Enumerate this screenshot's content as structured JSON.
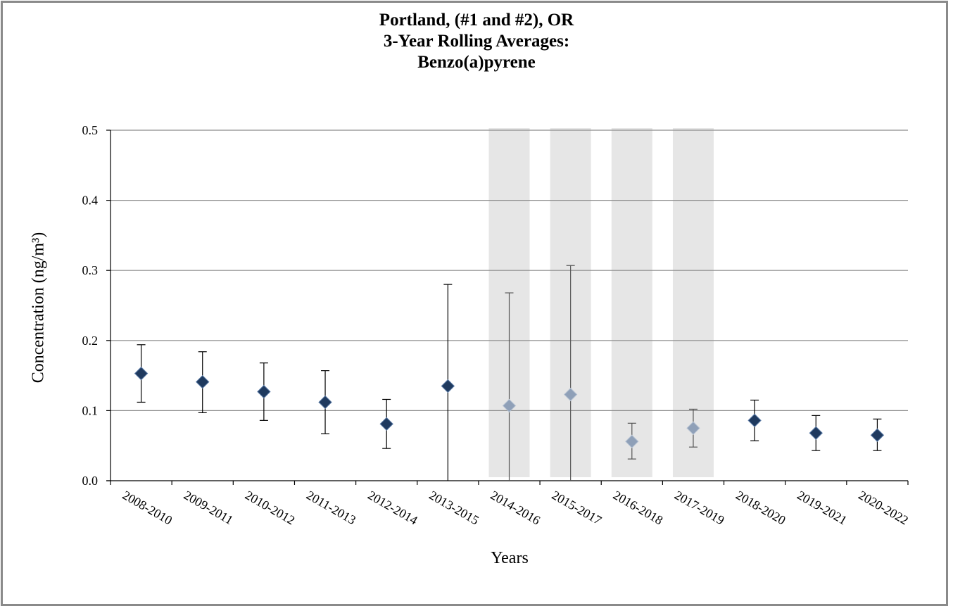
{
  "chart_data": {
    "type": "scatter",
    "title_lines": [
      "Portland, (#1 and #2), OR",
      "3-Year Rolling Averages:",
      "Benzo(a)pyrene"
    ],
    "ylabel": "Concentration (ng/m³)",
    "xlabel": "Years",
    "ylim": [
      0.0,
      0.5
    ],
    "yticks": [
      "0.0",
      "0.1",
      "0.2",
      "0.3",
      "0.4",
      "0.5"
    ],
    "grid": true,
    "categories": [
      "2008-2010",
      "2009-2011",
      "2010-2012",
      "2011-2013",
      "2012-2014",
      "2013-2015",
      "2014-2016",
      "2015-2017",
      "2016-2018",
      "2017-2019",
      "2018-2020",
      "2019-2021",
      "2020-2022"
    ],
    "values": [
      0.153,
      0.141,
      0.127,
      0.112,
      0.081,
      0.135,
      0.107,
      0.123,
      0.056,
      0.075,
      0.086,
      0.068,
      0.065
    ],
    "error_low": [
      0.112,
      0.097,
      0.086,
      0.067,
      0.046,
      0.0,
      0.0,
      0.0,
      0.031,
      0.048,
      0.057,
      0.043,
      0.043
    ],
    "error_high": [
      0.194,
      0.184,
      0.168,
      0.157,
      0.116,
      0.28,
      0.268,
      0.307,
      0.082,
      0.102,
      0.115,
      0.093,
      0.088
    ],
    "highlighted": [
      false,
      false,
      false,
      false,
      false,
      false,
      true,
      true,
      true,
      true,
      false,
      false,
      false
    ],
    "colors": {
      "marker": "#1f3a5f",
      "marker_faded": "#8fa0b8",
      "shade": "#e6e6e6",
      "grid": "#8c8c8c",
      "frame": "#8a8a8a"
    }
  }
}
